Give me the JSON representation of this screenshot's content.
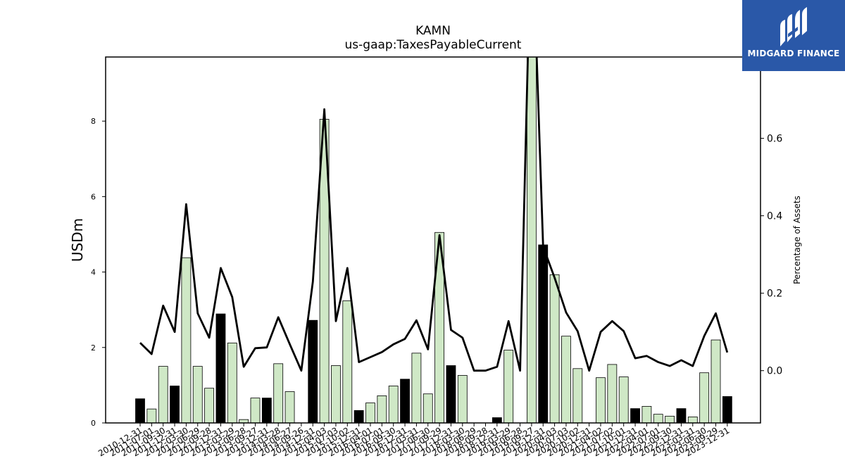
{
  "chart_data": {
    "type": "bar",
    "title": "KAMN",
    "subtitle": "us-gaap:TaxesPayableCurrent",
    "ylabel": "USDm",
    "ylabel_right": "Percentage of Assets",
    "ylim": [
      0,
      9.7
    ],
    "ylim_right": [
      -0.135,
      0.81
    ],
    "yticks": [
      0,
      2,
      4,
      6,
      8
    ],
    "yticks_right": [
      0.0,
      0.2,
      0.4,
      0.6
    ],
    "grid": false,
    "bar_colors": {
      "q4": "#000000",
      "other": "#cfe8c6"
    },
    "line_color": "#000000",
    "categories": [
      "2010-12-31",
      "2011-07-01",
      "2011-09-30",
      "2011-12-31",
      "2012-03-30",
      "2012-06-29",
      "2012-09-28",
      "2012-12-31",
      "2013-03-29",
      "2013-06-28",
      "2013-09-27",
      "2013-12-31",
      "2014-03-28",
      "2014-06-27",
      "2014-09-26",
      "2014-12-31",
      "2015-04-03",
      "2015-07-03",
      "2015-10-02",
      "2015-12-31",
      "2016-04-01",
      "2016-07-01",
      "2016-09-30",
      "2016-12-31",
      "2017-03-31",
      "2017-06-30",
      "2017-09-29",
      "2017-12-31",
      "2018-03-30",
      "2018-06-29",
      "2018-09-28",
      "2018-12-31",
      "2019-03-29",
      "2019-06-28",
      "2019-09-27",
      "2019-12-31",
      "2020-04-03",
      "2020-07-03",
      "2020-10-02",
      "2020-12-31",
      "2021-04-02",
      "2021-07-02",
      "2021-10-01",
      "2021-12-31",
      "2022-04-01",
      "2022-07-01",
      "2022-09-30",
      "2022-12-31",
      "2023-03-31",
      "2023-06-30",
      "2023-09-29",
      "2023-12-31"
    ],
    "values": [
      0.64,
      0.37,
      1.5,
      0.98,
      4.38,
      1.5,
      0.92,
      2.89,
      2.12,
      0.09,
      0.66,
      0.66,
      1.57,
      0.83,
      0,
      2.72,
      8.05,
      1.52,
      3.24,
      0.33,
      0.53,
      0.72,
      0.98,
      1.16,
      1.85,
      0.77,
      5.05,
      1.52,
      1.26,
      0,
      0,
      0.14,
      1.93,
      0,
      9.85,
      4.72,
      3.93,
      2.3,
      1.44,
      0,
      1.2,
      1.55,
      1.22,
      0.38,
      0.44,
      0.23,
      0.18,
      0.38,
      0.16,
      1.33,
      2.2,
      0.7
    ],
    "pct_assets": [
      0.072,
      0.043,
      0.168,
      0.1,
      0.43,
      0.148,
      0.085,
      0.265,
      0.19,
      0.01,
      0.058,
      0.06,
      0.138,
      0.068,
      0.0,
      0.23,
      0.675,
      0.128,
      0.265,
      0.022,
      0.035,
      0.048,
      0.068,
      0.082,
      0.13,
      0.055,
      0.35,
      0.105,
      0.085,
      0.0,
      0.0,
      0.01,
      0.128,
      0.0,
      1.2,
      0.32,
      0.24,
      0.15,
      0.102,
      0.0,
      0.1,
      0.128,
      0.102,
      0.032,
      0.038,
      0.022,
      0.012,
      0.027,
      0.012,
      0.09,
      0.148,
      0.047
    ]
  },
  "logo": {
    "name": "MIDGARD FINANCE"
  }
}
